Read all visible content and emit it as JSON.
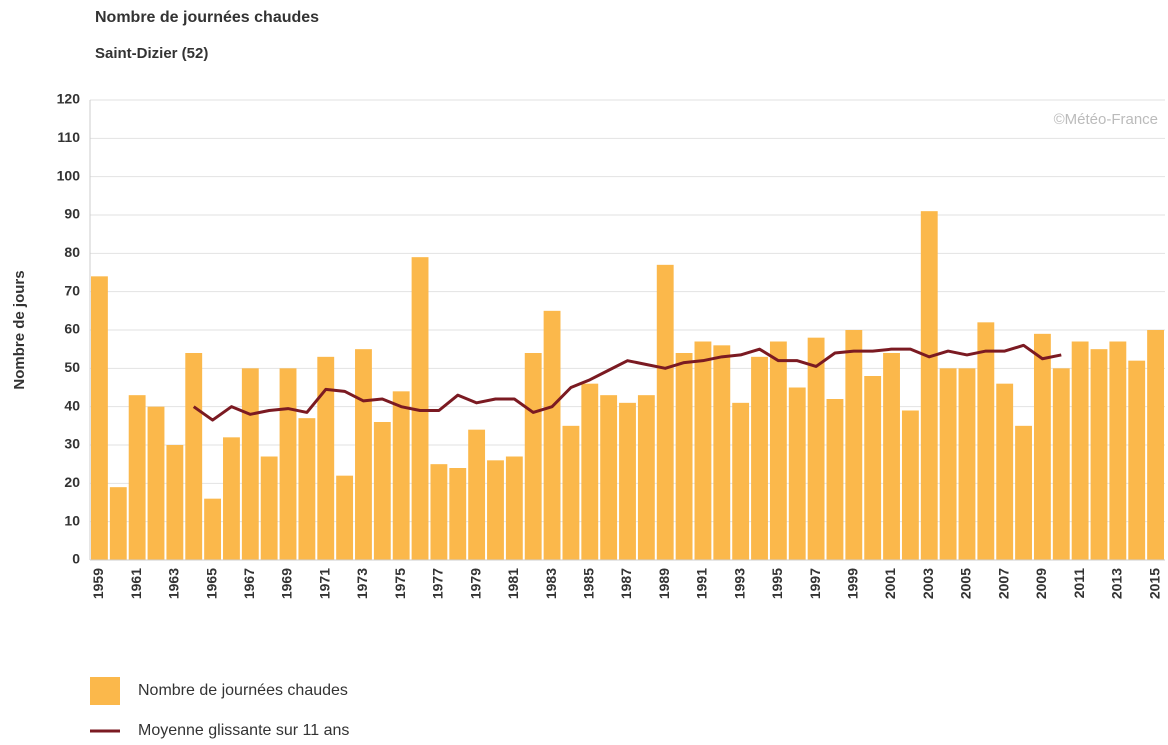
{
  "chart_data": {
    "type": "bar",
    "title": "Nombre de journées chaudes",
    "subtitle": "Saint-Dizier (52)",
    "y_label": "Nombre de jours",
    "watermark": "©Météo-France",
    "categories": [
      "1959",
      null,
      "1961",
      null,
      "1963",
      null,
      "1965",
      null,
      "1967",
      null,
      "1969",
      null,
      "1971",
      null,
      "1973",
      null,
      "1975",
      null,
      "1977",
      null,
      "1979",
      null,
      "1981",
      null,
      "1983",
      null,
      "1985",
      null,
      "1987",
      null,
      "1989",
      null,
      "1991",
      null,
      "1993",
      null,
      "1995",
      null,
      "1997",
      null,
      "1999",
      null,
      "2001",
      null,
      "2003",
      null,
      "2005",
      null,
      "2007",
      null,
      "2009",
      null,
      "2011",
      null,
      "2013",
      null,
      "2015"
    ],
    "series": [
      {
        "name": "Nombre de journées chaudes",
        "type": "bar",
        "color": "#fbb84b",
        "values": [
          74,
          19,
          43,
          40,
          30,
          54,
          16,
          32,
          50,
          27,
          50,
          37,
          53,
          22,
          55,
          36,
          44,
          79,
          25,
          24,
          34,
          26,
          27,
          54,
          65,
          35,
          46,
          43,
          41,
          43,
          77,
          54,
          57,
          56,
          41,
          53,
          57,
          45,
          58,
          42,
          60,
          48,
          54,
          39,
          91,
          50,
          50,
          62,
          46,
          35,
          59,
          50,
          57,
          55,
          57,
          52,
          60
        ]
      },
      {
        "name": "Moyenne glissante sur 11 ans",
        "type": "line",
        "color": "#7b1a22",
        "values": [
          null,
          null,
          null,
          null,
          null,
          40,
          36.5,
          40,
          38,
          39,
          39.5,
          38.5,
          44.5,
          44,
          41.5,
          42,
          40,
          39,
          39,
          43,
          41,
          42,
          42,
          38.5,
          40,
          45,
          47,
          49.5,
          52,
          51,
          50,
          51.5,
          52,
          53,
          53.5,
          55,
          52,
          52,
          50.5,
          54,
          54.5,
          54.5,
          55,
          55,
          53,
          54.5,
          53.5,
          54.5,
          54.5,
          56,
          52.5,
          53.5,
          null,
          null,
          null,
          null,
          null
        ]
      }
    ],
    "ylim": [
      0,
      120
    ],
    "yticks": [
      0,
      10,
      20,
      30,
      40,
      50,
      60,
      70,
      80,
      90,
      100,
      110,
      120
    ],
    "grid": true
  }
}
